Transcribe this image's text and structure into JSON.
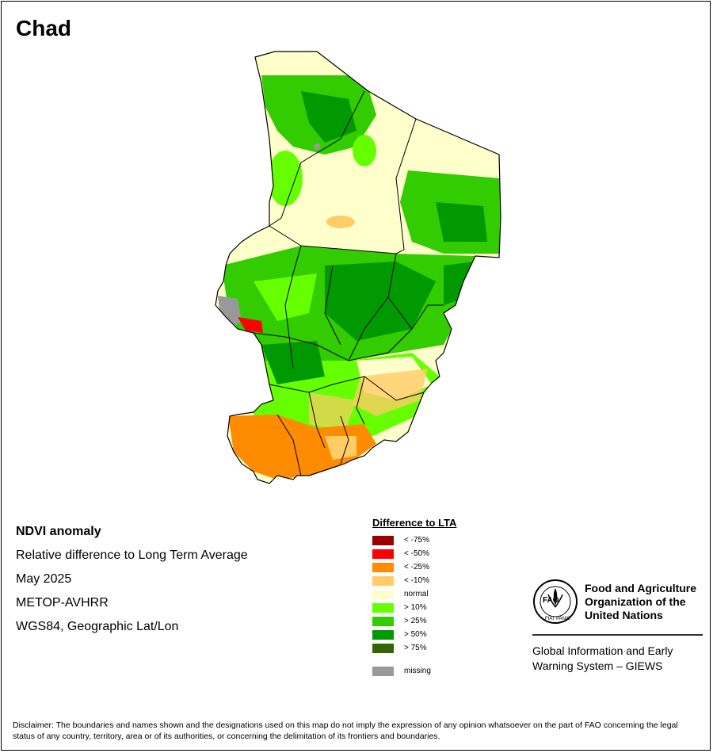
{
  "map": {
    "title": "Chad",
    "info_lines": [
      "NDVI anomaly",
      "Relative difference to Long Term Average",
      "May 2025",
      "METOP-AVHRR",
      "WGS84, Geographic Lat/Lon"
    ],
    "legend": {
      "title": "Difference to LTA",
      "items": [
        {
          "label": "< -75%",
          "color": "#990000"
        },
        {
          "label": "< -50%",
          "color": "#ff0000"
        },
        {
          "label": "< -25%",
          "color": "#ff8c00"
        },
        {
          "label": "< -10%",
          "color": "#ffcc66"
        },
        {
          "label": "normal",
          "color": "#ffffcc"
        },
        {
          "label": "> 10%",
          "color": "#66ff00"
        },
        {
          "label": "> 25%",
          "color": "#33cc00"
        },
        {
          "label": "> 50%",
          "color": "#009900"
        },
        {
          "label": "> 75%",
          "color": "#336600"
        }
      ],
      "missing": {
        "label": "missing",
        "color": "#999999"
      }
    },
    "organization": {
      "name_lines": [
        "Food and Agriculture",
        "Organization of the",
        "United Nations"
      ],
      "logo_text": "FAO",
      "logo_motto": "FIAT PANIS",
      "system_lines": [
        "Global Information and Early",
        "Warning System – GIEWS"
      ]
    },
    "disclaimer": "Disclaimer: The boundaries and names shown and the designations used on this map do not imply the expression of any opinion whatsoever on the part of FAO concerning the legal status of any country, territory, area or of its authorities, or concerning the delimitation of its frontiers and boundaries."
  }
}
